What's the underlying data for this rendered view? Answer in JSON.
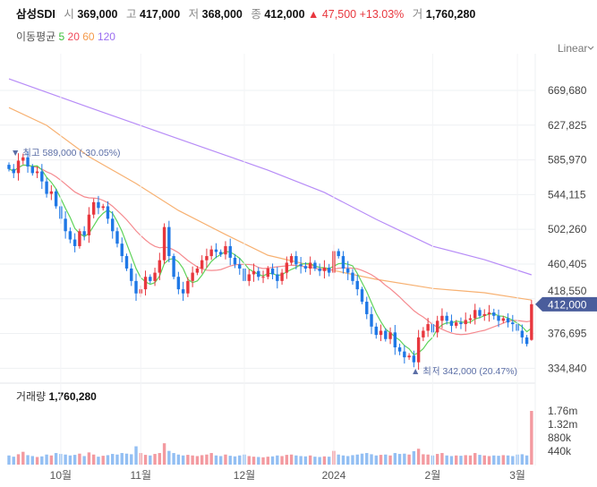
{
  "header": {
    "name": "삼성SDI",
    "open_label": "시",
    "open": "369,000",
    "high_label": "고",
    "high": "417,000",
    "low_label": "저",
    "low": "368,000",
    "close_label": "종",
    "close": "412,000",
    "change": "▲ 47,500",
    "change_pct": "+13.03%",
    "volume_label": "거",
    "volume": "1,760,280"
  },
  "ma_legend": {
    "label": "이동평균",
    "periods": [
      "5",
      "20",
      "60",
      "120"
    ]
  },
  "scale_selector": {
    "label": "Linear"
  },
  "colors": {
    "up": "#e8373e",
    "down": "#1f78e6",
    "ma5": "#5fd35a",
    "ma20": "#f58a8f",
    "ma60": "#f7b172",
    "ma120": "#b78cf7",
    "tag": "#4a5d9c"
  },
  "chart_data": {
    "type": "candlestick",
    "title": "삼성SDI",
    "y_ticks": [
      669680,
      627825,
      585970,
      544115,
      502260,
      460405,
      418550,
      376695,
      334840
    ],
    "y_tick_labels": [
      "669,680",
      "627,825",
      "585,970",
      "544,115",
      "502,260",
      "460,405",
      "418,550",
      "376,695",
      "334,840"
    ],
    "x_tick_labels": [
      "10월",
      "11월",
      "12월",
      "2024",
      "2월",
      "3월"
    ],
    "x_tick_index": [
      11,
      28,
      50,
      69,
      90,
      108
    ],
    "closes_k": [
      575,
      570,
      585,
      589,
      578,
      570,
      572,
      560,
      545,
      548,
      530,
      515,
      500,
      490,
      482,
      500,
      495,
      520,
      535,
      528,
      530,
      515,
      500,
      485,
      470,
      455,
      440,
      425,
      430,
      445,
      440,
      450,
      465,
      505,
      470,
      445,
      430,
      425,
      440,
      450,
      455,
      465,
      470,
      478,
      475,
      472,
      482,
      468,
      460,
      455,
      440,
      448,
      452,
      445,
      445,
      455,
      448,
      440,
      450,
      462,
      470,
      460,
      458,
      455,
      462,
      455,
      452,
      456,
      450,
      476,
      470,
      455,
      450,
      440,
      430,
      415,
      400,
      385,
      375,
      380,
      370,
      378,
      360,
      355,
      348,
      350,
      342,
      372,
      380,
      388,
      378,
      392,
      398,
      392,
      386,
      390,
      388,
      393,
      395,
      405,
      398,
      400,
      402,
      398,
      392,
      395,
      390,
      388,
      380,
      372,
      364,
      412
    ],
    "last_candle": {
      "open": 369000,
      "high": 417000,
      "low": 368000,
      "close": 412000
    },
    "current_price_label": "412,000",
    "max_label": "최고 589,000 (-30.05%)",
    "min_label": "최저 342,000 (20.47%)",
    "ma60_k": [
      [
        0,
        649
      ],
      [
        8,
        627.6
      ],
      [
        17,
        589.8
      ],
      [
        27,
        557.5
      ],
      [
        36,
        525
      ],
      [
        46,
        496
      ],
      [
        55,
        471
      ],
      [
        67,
        455
      ],
      [
        78,
        442
      ],
      [
        90,
        431
      ],
      [
        101,
        425.8
      ],
      [
        111,
        417
      ]
    ],
    "ma120_k": [
      [
        0,
        683.7
      ],
      [
        17,
        649.2
      ],
      [
        36,
        611.4
      ],
      [
        55,
        573.6
      ],
      [
        67,
        546.7
      ],
      [
        78,
        514.3
      ],
      [
        90,
        481.9
      ],
      [
        101,
        465.7
      ],
      [
        111,
        447.4
      ]
    ],
    "volume_title": "거래량",
    "volume_value": "1,760,280",
    "volume_ticks": [
      "1.76m",
      "1.32m",
      "880k",
      "440k"
    ],
    "volume_tick_values": [
      1760,
      1320,
      880,
      440
    ],
    "volumes_k": [
      300,
      260,
      340,
      420,
      310,
      280,
      250,
      270,
      330,
      300,
      380,
      350,
      330,
      300,
      320,
      360,
      280,
      400,
      330,
      260,
      290,
      310,
      350,
      330,
      380,
      360,
      340,
      600,
      380,
      320,
      300,
      350,
      380,
      700,
      450,
      380,
      330,
      300,
      320,
      300,
      280,
      310,
      330,
      380,
      300,
      280,
      330,
      290,
      270,
      300,
      330,
      280,
      260,
      250,
      240,
      260,
      270,
      300,
      280,
      320,
      330,
      300,
      280,
      270,
      300,
      260,
      250,
      270,
      260,
      450,
      330,
      300,
      280,
      310,
      330,
      360,
      380,
      340,
      300,
      320,
      330,
      300,
      380,
      350,
      360,
      330,
      440,
      520,
      340,
      330,
      300,
      350,
      380,
      300,
      280,
      300,
      290,
      310,
      300,
      380,
      320,
      300,
      280,
      300,
      290,
      310,
      300,
      280,
      330,
      340,
      300,
      1760
    ]
  }
}
